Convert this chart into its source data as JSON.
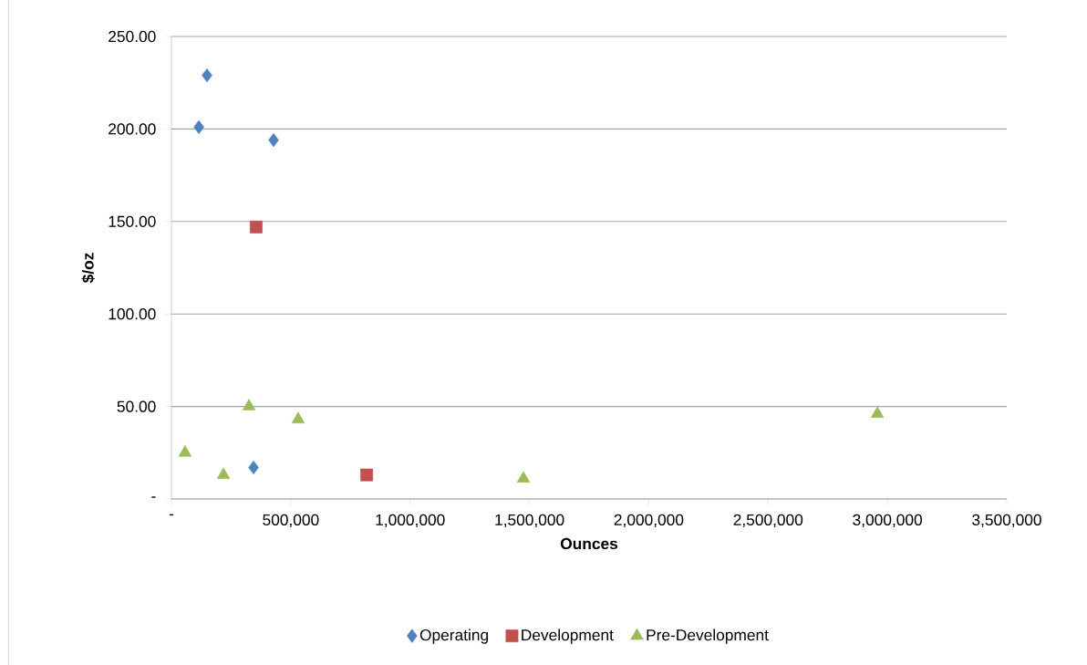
{
  "chart_data": {
    "type": "scatter",
    "xlabel": "Ounces",
    "ylabel": "$/oz",
    "xlim": [
      0,
      3500000
    ],
    "ylim": [
      0,
      250
    ],
    "xticks": [
      {
        "value": 0,
        "label": "-"
      },
      {
        "value": 500000,
        "label": "500,000"
      },
      {
        "value": 1000000,
        "label": "1,000,000"
      },
      {
        "value": 1500000,
        "label": "1,500,000"
      },
      {
        "value": 2000000,
        "label": "2,000,000"
      },
      {
        "value": 2500000,
        "label": "2,500,000"
      },
      {
        "value": 3000000,
        "label": "3,000,000"
      },
      {
        "value": 3500000,
        "label": "3,500,000"
      }
    ],
    "yticks": [
      {
        "value": 0,
        "label": "-"
      },
      {
        "value": 50,
        "label": "50.00"
      },
      {
        "value": 100,
        "label": "100.00"
      },
      {
        "value": 150,
        "label": "150.00"
      },
      {
        "value": 200,
        "label": "200.00"
      },
      {
        "value": 250,
        "label": "250.00"
      }
    ],
    "grid": "y",
    "legend": "bottom",
    "series": [
      {
        "name": "Operating",
        "color": "#4f81bd",
        "marker": "diamond",
        "x": [
          115000,
          149000,
          428000,
          344000
        ],
        "values": [
          201,
          229,
          194,
          17
        ]
      },
      {
        "name": "Development",
        "color": "#c0504d",
        "marker": "square",
        "x": [
          355000,
          818000
        ],
        "values": [
          147,
          13
        ]
      },
      {
        "name": "Pre-Development",
        "color": "#9bbb59",
        "marker": "triangle",
        "x": [
          57000,
          218000,
          325000,
          531000,
          1475000,
          2958000
        ],
        "values": [
          25,
          13,
          50,
          43,
          11,
          46
        ]
      }
    ]
  }
}
